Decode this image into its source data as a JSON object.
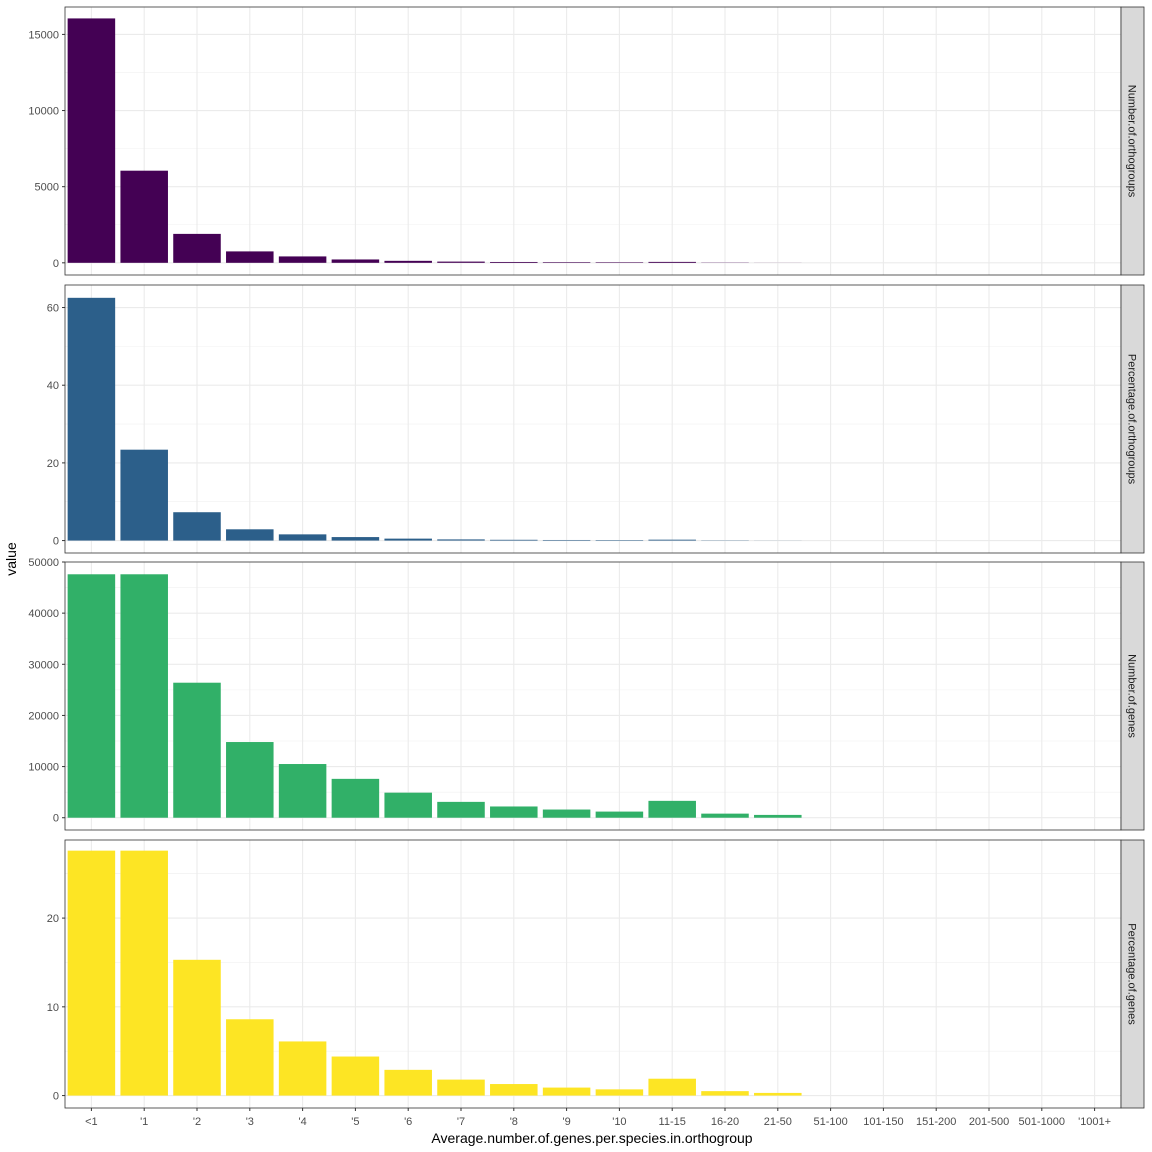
{
  "chart_data": {
    "type": "bar",
    "xlabel": "Average.number.of.genes.per.species.in.orthogroup",
    "ylabel": "value",
    "categories": [
      "<1",
      "'1",
      "'2",
      "'3",
      "'4",
      "'5",
      "'6",
      "'7",
      "'8",
      "'9",
      "'10",
      "11-15",
      "16-20",
      "21-50",
      "51-100",
      "101-150",
      "151-200",
      "201-500",
      "501-1000",
      "'1001+"
    ],
    "grid": true,
    "panels": [
      {
        "strip": "Number.of.orthogroups",
        "color": "#440154",
        "ylim": [
          -800,
          16800
        ],
        "yticks": [
          0,
          5000,
          10000,
          15000
        ],
        "ytick_labels": [
          "0",
          "5000",
          "10000",
          "15000"
        ],
        "values": [
          16050,
          6050,
          1900,
          750,
          420,
          220,
          130,
          80,
          55,
          40,
          35,
          60,
          15,
          5,
          0,
          0,
          0,
          0,
          0,
          0
        ]
      },
      {
        "strip": "Percentage.of.orthogroups",
        "color": "#2c5f8a",
        "ylim": [
          -3.2,
          65.8
        ],
        "yticks": [
          0,
          20,
          40,
          60
        ],
        "ytick_labels": [
          "0",
          "20",
          "40",
          "60"
        ],
        "values": [
          62.5,
          23.4,
          7.3,
          2.9,
          1.6,
          0.9,
          0.5,
          0.3,
          0.2,
          0.15,
          0.13,
          0.23,
          0.06,
          0.02,
          0,
          0,
          0,
          0,
          0,
          0
        ]
      },
      {
        "strip": "Number.of.genes",
        "color": "#31b068",
        "ylim": [
          -2400,
          50000
        ],
        "yticks": [
          0,
          10000,
          20000,
          30000,
          40000,
          50000
        ],
        "ytick_labels": [
          "0",
          "10000",
          "20000",
          "30000",
          "40000",
          "50000"
        ],
        "values": [
          47600,
          47600,
          26400,
          14800,
          10500,
          7600,
          4900,
          3100,
          2200,
          1600,
          1200,
          3300,
          800,
          550,
          0,
          0,
          0,
          0,
          0,
          0
        ]
      },
      {
        "strip": "Percentage.of.genes",
        "color": "#fde524",
        "ylim": [
          -1.4,
          28.8
        ],
        "yticks": [
          0,
          10,
          20
        ],
        "ytick_labels": [
          "0",
          "10",
          "20"
        ],
        "values": [
          27.6,
          27.6,
          15.3,
          8.6,
          6.1,
          4.4,
          2.9,
          1.8,
          1.3,
          0.9,
          0.7,
          1.9,
          0.5,
          0.3,
          0,
          0,
          0,
          0,
          0,
          0
        ]
      }
    ]
  }
}
